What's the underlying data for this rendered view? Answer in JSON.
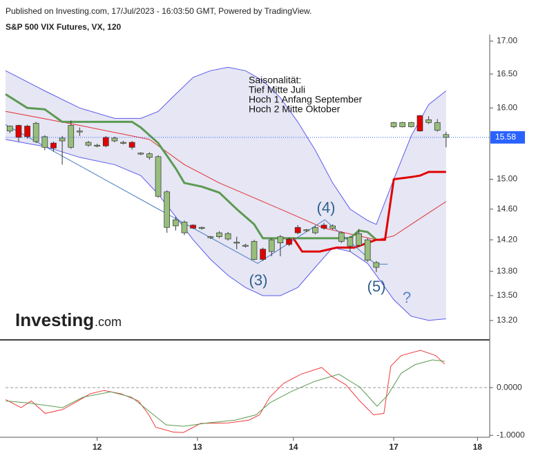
{
  "header": {
    "published": "Published on Investing.com, 17/Jul/2023 - 16:03:50 GMT, Powered by TradingView.",
    "logo": [
      "Investing",
      ".com"
    ]
  },
  "chart_data": [
    {
      "type": "candlestick",
      "title": "S&P 500 VIX Futures, VX, 120",
      "log": true,
      "xlim": [
        -0.5,
        55
      ],
      "ylim": [
        12.97,
        17.1
      ],
      "yticks": [
        {
          "value": 13.2,
          "label": "13.20"
        },
        {
          "value": 13.5,
          "label": "13.50"
        },
        {
          "value": 13.8,
          "label": "13.80"
        },
        {
          "value": 14.2,
          "label": "14.20"
        },
        {
          "value": 14.6,
          "label": "14.60"
        },
        {
          "value": 15,
          "label": "15.00"
        },
        {
          "value": 16,
          "label": "16.00"
        },
        {
          "value": 16.5,
          "label": "16.50"
        },
        {
          "value": 17,
          "label": "17.00"
        }
      ],
      "up_color": "#97be7c",
      "down_color": "#e00000",
      "candles": {
        "x": [
          0,
          1,
          2,
          3,
          4,
          5,
          6,
          7,
          8,
          9,
          10,
          11,
          12,
          13,
          14,
          15,
          16,
          17,
          18,
          19,
          20,
          21,
          22,
          23,
          24,
          25,
          26,
          27,
          28,
          29,
          30,
          31,
          32,
          33,
          34,
          35,
          36,
          37,
          38,
          39,
          40,
          41,
          42,
          44,
          45,
          46,
          47,
          48,
          49,
          50
        ],
        "open": [
          15.67,
          15.75,
          15.74,
          15.52,
          15.44,
          15.5,
          15.53,
          15.44,
          15.66,
          15.47,
          15.46,
          15.58,
          15.53,
          15.5,
          15.51,
          15.35,
          15.3,
          14.77,
          14.36,
          14.38,
          14.29,
          14.39,
          14.35,
          14.23,
          14.24,
          14.21,
          14.16,
          14.12,
          13.95,
          14.08,
          14.05,
          14.16,
          14.21,
          14.36,
          14.32,
          14.29,
          14.39,
          14.35,
          14.18,
          14.12,
          14.13,
          13.94,
          13.85,
          15.73,
          15.73,
          15.73,
          15.89,
          15.79,
          15.68,
          15.58
        ],
        "high": [
          15.75,
          15.76,
          15.76,
          15.8,
          15.61,
          15.52,
          15.6,
          15.82,
          15.72,
          15.53,
          15.49,
          15.6,
          15.59,
          15.53,
          15.53,
          15.37,
          15.37,
          15.33,
          14.85,
          14.5,
          14.45,
          14.4,
          14.37,
          14.25,
          14.31,
          14.3,
          14.24,
          14.15,
          14.2,
          14.1,
          14.22,
          14.26,
          14.23,
          14.39,
          14.34,
          14.38,
          14.42,
          14.4,
          14.31,
          14.25,
          14.34,
          14.22,
          13.93,
          15.8,
          15.8,
          15.8,
          15.9,
          15.88,
          15.84,
          15.66
        ],
        "low": [
          15.64,
          15.52,
          15.56,
          15.5,
          15.4,
          15.38,
          15.2,
          15.42,
          15.6,
          15.45,
          15.44,
          15.44,
          15.51,
          15.48,
          15.41,
          15.33,
          15.27,
          14.75,
          14.29,
          14.32,
          14.26,
          14.34,
          14.33,
          14.21,
          14.22,
          14.19,
          14.08,
          14.1,
          13.94,
          13.93,
          13.99,
          13.99,
          14.12,
          14.27,
          14.3,
          14.27,
          14.33,
          14.33,
          14.16,
          14.05,
          14.11,
          13.92,
          13.79,
          15.71,
          15.72,
          15.72,
          15.66,
          15.77,
          15.66,
          15.44
        ],
        "close": [
          15.74,
          15.58,
          15.59,
          15.78,
          15.59,
          15.43,
          15.57,
          15.75,
          15.67,
          15.51,
          15.47,
          15.46,
          15.57,
          15.51,
          15.44,
          15.36,
          15.35,
          15.31,
          14.83,
          14.46,
          14.43,
          14.35,
          14.36,
          14.24,
          14.29,
          14.28,
          14.17,
          14.13,
          14.18,
          13.95,
          14.2,
          14.24,
          14.14,
          14.29,
          14.33,
          14.36,
          14.35,
          14.38,
          14.29,
          14.23,
          14.28,
          14.2,
          13.91,
          15.79,
          15.79,
          15.79,
          15.67,
          15.83,
          15.79,
          15.62
        ]
      },
      "bands": {
        "color": "#5a5aee",
        "fill": "#e6e6f4",
        "x": [
          -0.5,
          4,
          8,
          12,
          15,
          17,
          19,
          21,
          23,
          25,
          27,
          29,
          31,
          33,
          35,
          37,
          39,
          41,
          42,
          44,
          46,
          48,
          50
        ],
        "upper": [
          16.55,
          16.25,
          16.0,
          15.85,
          15.85,
          15.95,
          16.2,
          16.45,
          16.55,
          16.6,
          16.55,
          16.4,
          16.15,
          15.8,
          15.4,
          14.95,
          14.6,
          14.45,
          14.4,
          15.0,
          15.6,
          16.05,
          16.25
        ],
        "lower": [
          15.55,
          15.45,
          15.3,
          15.2,
          15.05,
          14.8,
          14.5,
          14.2,
          13.95,
          13.75,
          13.6,
          13.5,
          13.5,
          13.6,
          13.85,
          14.1,
          14.05,
          13.9,
          13.75,
          13.45,
          13.25,
          13.2,
          13.22
        ]
      },
      "overlays": [
        {
          "color": "#e03030",
          "line_width": 1,
          "x": [
            -0.5,
            8,
            16,
            20,
            24,
            28,
            32,
            36,
            40,
            42,
            44,
            46,
            48,
            50
          ],
          "values": [
            15.95,
            15.75,
            15.55,
            15.2,
            14.95,
            14.75,
            14.55,
            14.35,
            14.25,
            14.2,
            14.25,
            14.4,
            14.55,
            14.7
          ]
        },
        {
          "color": "#5c9a52",
          "line_width": 3,
          "x": [
            -0.5,
            2,
            4,
            6,
            8,
            10,
            12,
            14,
            15,
            17,
            19,
            20,
            22,
            24,
            26,
            28,
            29,
            31,
            33,
            35,
            37,
            39,
            40,
            41,
            42
          ],
          "values": [
            16.2,
            16.0,
            15.98,
            15.8,
            15.8,
            15.8,
            15.8,
            15.8,
            15.72,
            15.5,
            15.15,
            14.95,
            14.9,
            14.82,
            14.6,
            14.4,
            14.22,
            14.22,
            14.22,
            14.22,
            14.22,
            14.22,
            14.32,
            14.3,
            14.2
          ]
        },
        {
          "color": "#e00000",
          "line_width": 3,
          "x": [
            32.5,
            33.5,
            35.5,
            37.5,
            39.5,
            42,
            43,
            44,
            46,
            47,
            48,
            50
          ],
          "values": [
            14.22,
            14.05,
            14.05,
            14.1,
            14.1,
            14.2,
            14.2,
            15.0,
            15.03,
            15.05,
            15.1,
            15.1
          ]
        },
        {
          "color": "#4a7fc1",
          "line_width": 1,
          "x": [
            -0.5,
            16.7,
            28.4,
            36.1,
            41.9,
            43.3
          ],
          "values": [
            15.76,
            14.62,
            13.9,
            14.46,
            13.89,
            13.89
          ]
        }
      ],
      "last_price": 15.58,
      "last_price_color": "#2962ff",
      "annotation": [
        "Saisonalität:",
        "Tief Mitte Juli",
        "Hoch 1 Anfang September",
        "Hoch 2 Mitte Oktober"
      ],
      "wave_labels": [
        "(3)",
        "(4)",
        "(5)",
        "?"
      ]
    },
    {
      "type": "line",
      "xlim": [
        -0.5,
        55
      ],
      "ylim": [
        -1.04,
        0.97
      ],
      "xticks": [
        {
          "value": 10,
          "label": "12"
        },
        {
          "value": 21.5,
          "label": "13"
        },
        {
          "value": 32.5,
          "label": "14"
        },
        {
          "value": 44,
          "label": "17"
        },
        {
          "value": 53.6,
          "label": "18"
        }
      ],
      "yticks": [
        {
          "value": 0,
          "label": "0.0000"
        },
        {
          "value": -1,
          "label": "-1.0000"
        }
      ],
      "zero_line": true,
      "series": [
        {
          "color": "#f03a3a",
          "x": [
            -0.48,
            1.27,
            2.46,
            4.04,
            6.02,
            7.61,
            9.19,
            10.78,
            12.76,
            14.74,
            15.93,
            16.72,
            18.7,
            19.89,
            21.87,
            25.04,
            27.42,
            28.61,
            29.79,
            31.38,
            33.36,
            35.74,
            36.93,
            38.51,
            40.1,
            41.68,
            42.87,
            43.66,
            44.85,
            47.07,
            48.81,
            49.84
          ],
          "values": [
            -0.25,
            -0.42,
            -0.28,
            -0.54,
            -0.46,
            -0.3,
            -0.13,
            -0.06,
            -0.13,
            -0.28,
            -0.57,
            -0.83,
            -0.93,
            -0.94,
            -0.75,
            -0.74,
            -0.68,
            -0.57,
            -0.2,
            0.09,
            0.28,
            0.42,
            0.23,
            0.06,
            -0.28,
            -0.57,
            -0.54,
            0.45,
            0.67,
            0.78,
            0.67,
            0.49
          ]
        },
        {
          "color": "#5a9a50",
          "x": [
            -0.48,
            2.06,
            6.02,
            8.4,
            11.57,
            13.95,
            15.93,
            17.91,
            19.89,
            22.66,
            25.83,
            28.21,
            29.79,
            32.17,
            34.94,
            37.72,
            40.1,
            42.08,
            43.27,
            44.85,
            46.43,
            48.42,
            49.84
          ],
          "values": [
            -0.28,
            -0.32,
            -0.42,
            -0.2,
            -0.09,
            -0.2,
            -0.49,
            -0.78,
            -0.81,
            -0.74,
            -0.68,
            -0.57,
            -0.32,
            -0.09,
            0.13,
            0.28,
            0.01,
            -0.39,
            -0.17,
            0.3,
            0.48,
            0.58,
            0.55
          ]
        }
      ]
    }
  ]
}
